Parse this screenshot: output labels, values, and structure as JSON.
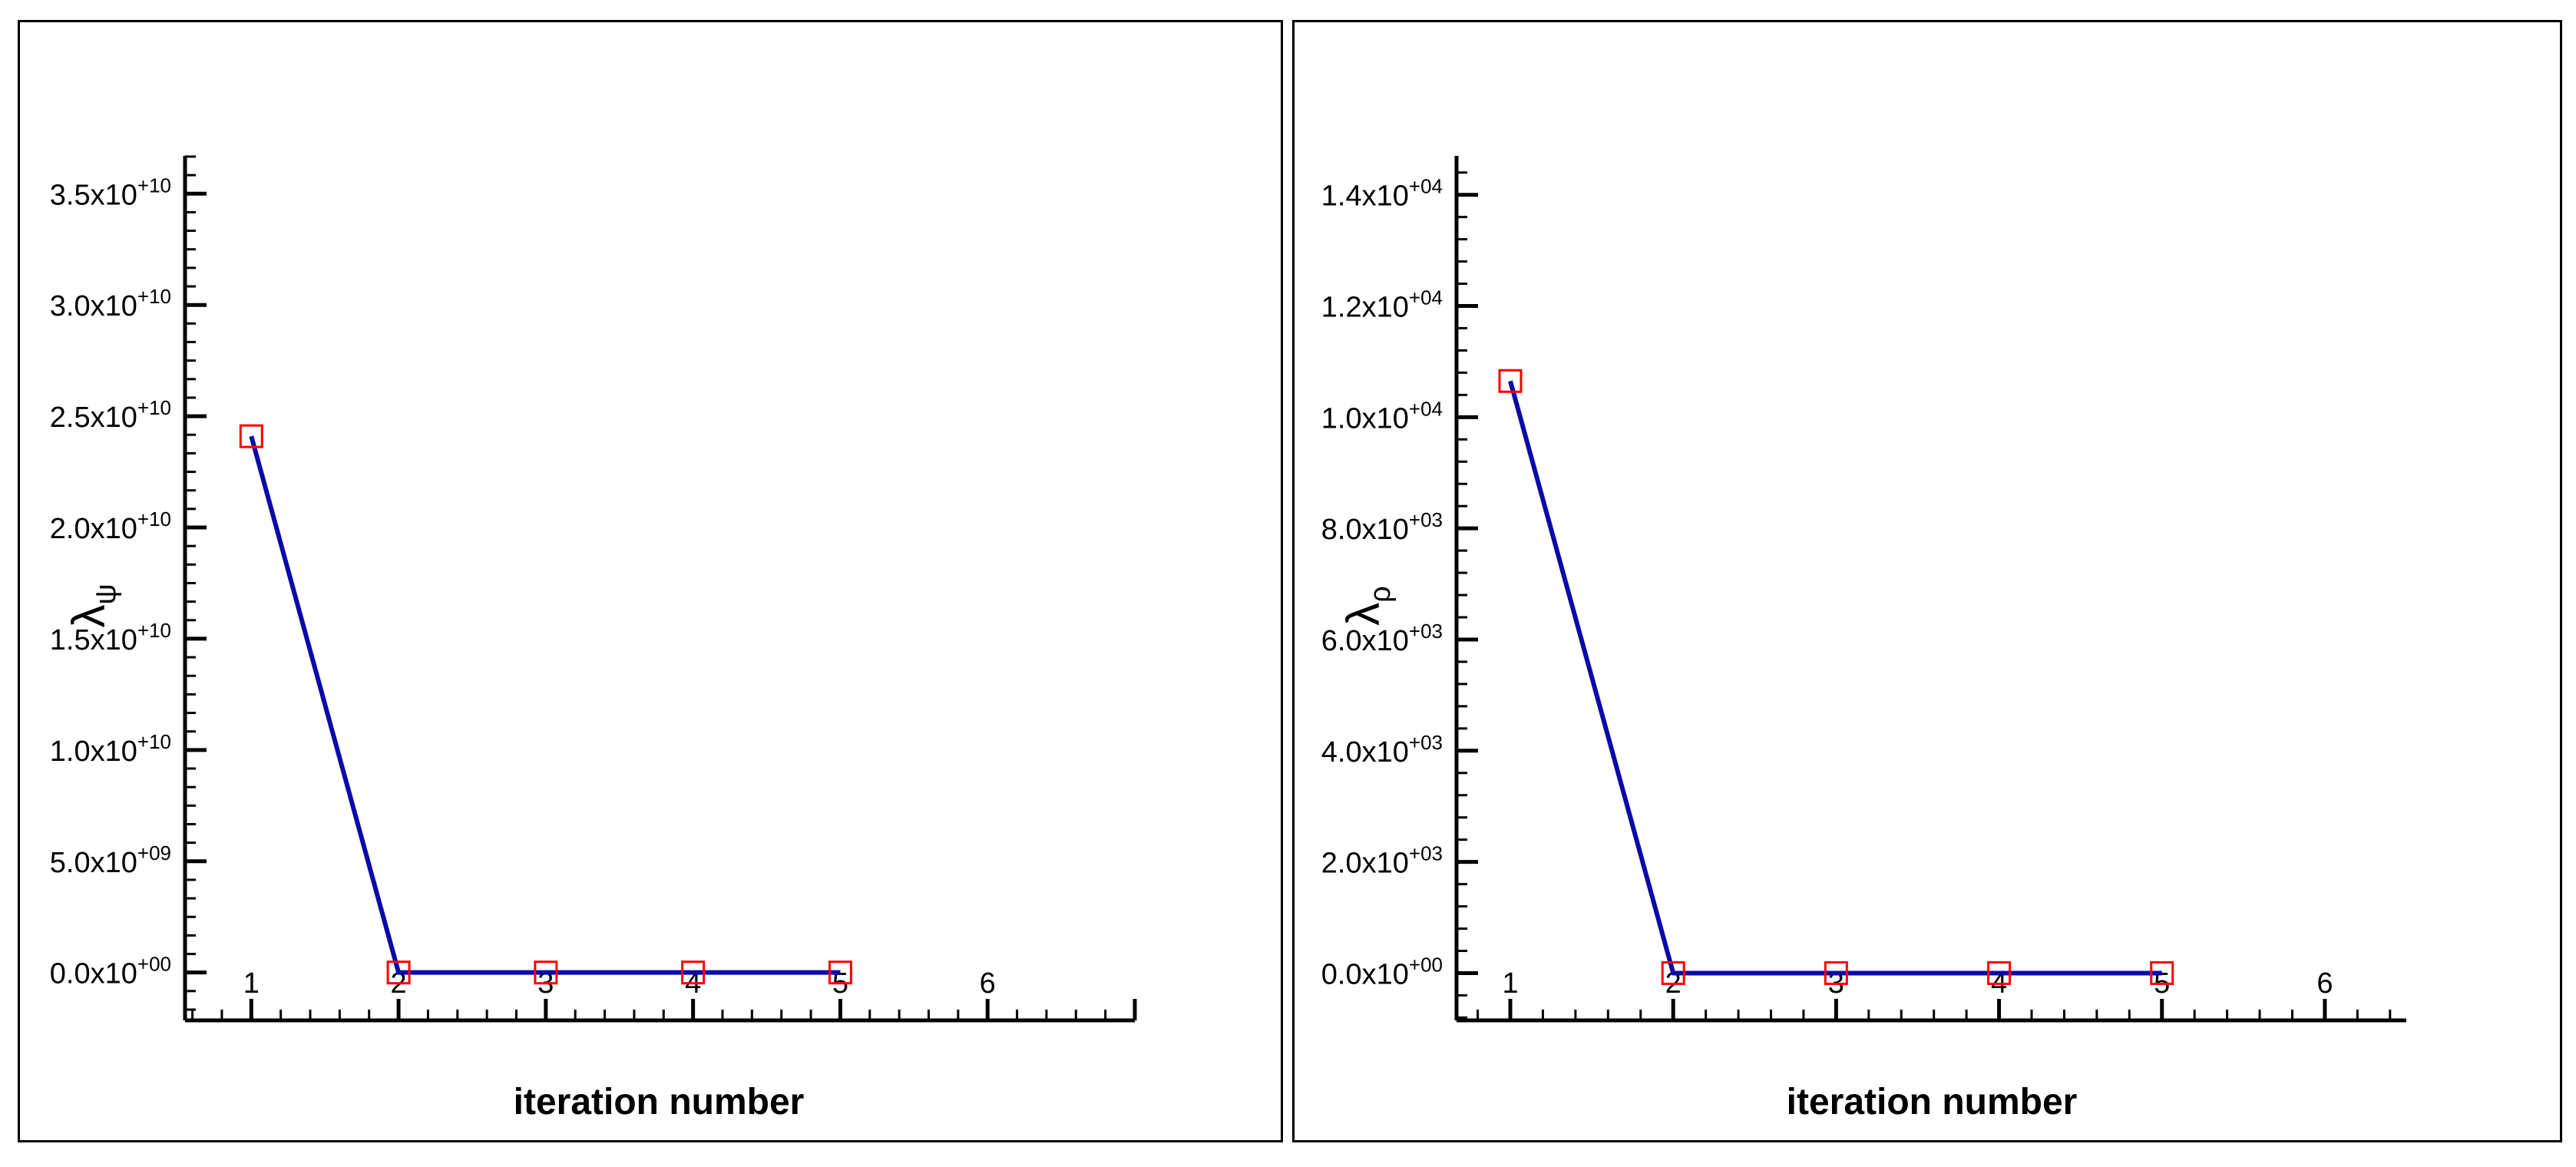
{
  "chart_data": [
    {
      "type": "line",
      "xlabel": "iteration number",
      "ylabel": {
        "base": "λ",
        "sub": "ψ"
      },
      "xlim": [
        0.55,
        7.0
      ],
      "ylim": [
        -2150000000.0,
        36700000000.0
      ],
      "x_ticks": [
        1,
        2,
        3,
        4,
        5,
        6
      ],
      "x_tick_labels": [
        "1",
        "2",
        "3",
        "4",
        "5",
        "6"
      ],
      "y_ticks": [
        {
          "value": 0,
          "mantissa": "0.0",
          "exponent": "+00"
        },
        {
          "value": 5000000000.0,
          "mantissa": "5.0",
          "exponent": "+09"
        },
        {
          "value": 10000000000.0,
          "mantissa": "1.0",
          "exponent": "+10"
        },
        {
          "value": 15000000000.0,
          "mantissa": "1.5",
          "exponent": "+10"
        },
        {
          "value": 20000000000.0,
          "mantissa": "2.0",
          "exponent": "+10"
        },
        {
          "value": 25000000000.0,
          "mantissa": "2.5",
          "exponent": "+10"
        },
        {
          "value": 30000000000.0,
          "mantissa": "3.0",
          "exponent": "+10"
        },
        {
          "value": 35000000000.0,
          "mantissa": "3.5",
          "exponent": "+10"
        }
      ],
      "x_minor_per_major": 4,
      "y_minor_per_major": 5,
      "series": [
        {
          "x": [
            1,
            2,
            3,
            4,
            5
          ],
          "y": [
            24100000000.0,
            0,
            0,
            0,
            0
          ]
        }
      ],
      "grid": false,
      "line_color": "#0a0aa8",
      "marker_color": "#ff0000",
      "marker": "square"
    },
    {
      "type": "line",
      "xlabel": "iteration number",
      "ylabel": {
        "base": "λ",
        "sub": "ρ"
      },
      "xlim": [
        0.67,
        6.5
      ],
      "ylim": [
        -850,
        14700
      ],
      "x_ticks": [
        1,
        2,
        3,
        4,
        5,
        6
      ],
      "x_tick_labels": [
        "1",
        "2",
        "3",
        "4",
        "5",
        "6"
      ],
      "y_ticks": [
        {
          "value": 0,
          "mantissa": "0.0",
          "exponent": "+00"
        },
        {
          "value": 2000,
          "mantissa": "2.0",
          "exponent": "+03"
        },
        {
          "value": 4000,
          "mantissa": "4.0",
          "exponent": "+03"
        },
        {
          "value": 6000,
          "mantissa": "6.0",
          "exponent": "+03"
        },
        {
          "value": 8000,
          "mantissa": "8.0",
          "exponent": "+03"
        },
        {
          "value": 10000,
          "mantissa": "1.0",
          "exponent": "+04"
        },
        {
          "value": 12000,
          "mantissa": "1.2",
          "exponent": "+04"
        },
        {
          "value": 14000,
          "mantissa": "1.4",
          "exponent": "+04"
        }
      ],
      "x_minor_per_major": 4,
      "y_minor_per_major": 4,
      "series": [
        {
          "x": [
            1,
            2,
            3,
            4,
            5
          ],
          "y": [
            10650,
            0,
            0,
            0,
            0
          ]
        }
      ],
      "grid": false,
      "line_color": "#0a0aa8",
      "marker_color": "#ff0000",
      "marker": "square"
    }
  ]
}
